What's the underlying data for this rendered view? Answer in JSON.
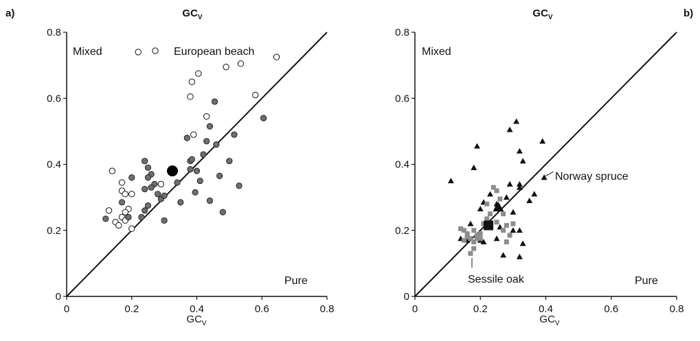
{
  "panels": [
    {
      "panel_label": "a)",
      "top_title_main": "GC",
      "top_title_sub": "V",
      "x_title_main": "GC",
      "x_title_sub": "V",
      "annotations": {
        "mixed": "Mixed",
        "pure": "Pure",
        "species": "European beach"
      }
    },
    {
      "panel_label": "b)",
      "top_title_main": "GC",
      "top_title_sub": "V",
      "x_title_main": "GC",
      "x_title_sub": "V",
      "annotations": {
        "mixed": "Mixed",
        "pure": "Pure",
        "species_1": "Norway spruce",
        "species_2": "Sessile oak"
      }
    }
  ],
  "chart_data": [
    {
      "type": "scatter",
      "xlim": [
        0,
        0.8
      ],
      "ylim": [
        0,
        0.8
      ],
      "x_ticks": [
        "0",
        "0.2",
        "0.4",
        "0.6",
        "0.8"
      ],
      "y_ticks": [
        "0",
        "0.2",
        "0.4",
        "0.6",
        "0.8"
      ],
      "reference_line": "1:1",
      "colors": {
        "open": "#ffffff",
        "grey": "#6e6e6e",
        "mean": "#000000"
      },
      "series": [
        {
          "marker": "open-circle",
          "points": [
            [
              0.14,
              0.38
            ],
            [
              0.17,
              0.345
            ],
            [
              0.17,
              0.32
            ],
            [
              0.18,
              0.31
            ],
            [
              0.19,
              0.265
            ],
            [
              0.2,
              0.31
            ],
            [
              0.18,
              0.255
            ],
            [
              0.17,
              0.24
            ],
            [
              0.18,
              0.23
            ],
            [
              0.15,
              0.225
            ],
            [
              0.16,
              0.215
            ],
            [
              0.13,
              0.26
            ],
            [
              0.2,
              0.205
            ],
            [
              0.29,
              0.34
            ],
            [
              0.385,
              0.65
            ],
            [
              0.405,
              0.675
            ],
            [
              0.38,
              0.605
            ],
            [
              0.43,
              0.545
            ],
            [
              0.49,
              0.695
            ],
            [
              0.535,
              0.705
            ],
            [
              0.58,
              0.61
            ],
            [
              0.645,
              0.725
            ],
            [
              0.39,
              0.49
            ],
            [
              0.22,
              0.74
            ]
          ]
        },
        {
          "marker": "grey-circle",
          "points": [
            [
              0.12,
              0.235
            ],
            [
              0.17,
              0.285
            ],
            [
              0.2,
              0.36
            ],
            [
              0.19,
              0.24
            ],
            [
              0.24,
              0.41
            ],
            [
              0.25,
              0.39
            ],
            [
              0.26,
              0.37
            ],
            [
              0.24,
              0.325
            ],
            [
              0.27,
              0.34
            ],
            [
              0.25,
              0.36
            ],
            [
              0.26,
              0.33
            ],
            [
              0.28,
              0.31
            ],
            [
              0.29,
              0.295
            ],
            [
              0.25,
              0.275
            ],
            [
              0.24,
              0.26
            ],
            [
              0.23,
              0.24
            ],
            [
              0.3,
              0.23
            ],
            [
              0.34,
              0.345
            ],
            [
              0.37,
              0.48
            ],
            [
              0.38,
              0.41
            ],
            [
              0.385,
              0.415
            ],
            [
              0.4,
              0.38
            ],
            [
              0.41,
              0.35
            ],
            [
              0.42,
              0.43
            ],
            [
              0.43,
              0.47
            ],
            [
              0.44,
              0.515
            ],
            [
              0.455,
              0.59
            ],
            [
              0.46,
              0.46
            ],
            [
              0.47,
              0.365
            ],
            [
              0.5,
              0.41
            ],
            [
              0.515,
              0.49
            ],
            [
              0.53,
              0.335
            ],
            [
              0.605,
              0.54
            ],
            [
              0.44,
              0.29
            ],
            [
              0.48,
              0.255
            ],
            [
              0.395,
              0.315
            ],
            [
              0.35,
              0.285
            ],
            [
              0.3,
              0.305
            ],
            [
              0.38,
              0.385
            ]
          ]
        },
        {
          "marker": "mean-circle",
          "points": [
            [
              0.325,
              0.38
            ]
          ]
        }
      ]
    },
    {
      "type": "scatter",
      "xlim": [
        0,
        0.8
      ],
      "ylim": [
        0,
        0.8
      ],
      "x_ticks": [
        "0",
        "0.2",
        "0.4",
        "0.6",
        "0.8"
      ],
      "y_ticks": [
        "0",
        "0.2",
        "0.4",
        "0.6",
        "0.8"
      ],
      "reference_line": "1:1",
      "colors": {
        "triangle": "#111111",
        "square": "#8c8c8c",
        "mean": "#111111"
      },
      "series": [
        {
          "marker": "black-triangle",
          "points": [
            [
              0.11,
              0.35
            ],
            [
              0.19,
              0.455
            ],
            [
              0.18,
              0.39
            ],
            [
              0.21,
              0.285
            ],
            [
              0.2,
              0.265
            ],
            [
              0.23,
              0.31
            ],
            [
              0.2,
              0.17
            ],
            [
              0.21,
              0.165
            ],
            [
              0.25,
              0.175
            ],
            [
              0.26,
              0.21
            ],
            [
              0.28,
              0.3
            ],
            [
              0.29,
              0.34
            ],
            [
              0.3,
              0.255
            ],
            [
              0.29,
              0.505
            ],
            [
              0.31,
              0.53
            ],
            [
              0.32,
              0.44
            ],
            [
              0.32,
              0.34
            ],
            [
              0.3,
              0.2
            ],
            [
              0.32,
              0.2
            ],
            [
              0.33,
              0.16
            ],
            [
              0.33,
              0.41
            ],
            [
              0.35,
              0.29
            ],
            [
              0.365,
              0.31
            ],
            [
              0.39,
              0.47
            ],
            [
              0.395,
              0.36
            ],
            [
              0.32,
              0.12
            ],
            [
              0.27,
              0.125
            ],
            [
              0.25,
              0.28
            ],
            [
              0.17,
              0.22
            ],
            [
              0.16,
              0.17
            ],
            [
              0.14,
              0.175
            ],
            [
              0.32,
              0.33
            ],
            [
              0.25,
              0.27
            ]
          ]
        },
        {
          "marker": "grey-square",
          "points": [
            [
              0.14,
              0.205
            ],
            [
              0.15,
              0.2
            ],
            [
              0.16,
              0.19
            ],
            [
              0.17,
              0.175
            ],
            [
              0.18,
              0.165
            ],
            [
              0.19,
              0.185
            ],
            [
              0.18,
              0.2
            ],
            [
              0.16,
              0.18
            ],
            [
              0.17,
              0.13
            ],
            [
              0.18,
              0.145
            ],
            [
              0.2,
              0.175
            ],
            [
              0.21,
              0.22
            ],
            [
              0.22,
              0.235
            ],
            [
              0.23,
              0.25
            ],
            [
              0.22,
              0.28
            ],
            [
              0.25,
              0.32
            ],
            [
              0.24,
              0.33
            ],
            [
              0.26,
              0.295
            ],
            [
              0.27,
              0.25
            ],
            [
              0.28,
              0.215
            ],
            [
              0.29,
              0.185
            ],
            [
              0.28,
              0.165
            ],
            [
              0.27,
              0.2
            ],
            [
              0.25,
              0.225
            ],
            [
              0.3,
              0.22
            ],
            [
              0.2,
              0.19
            ],
            [
              0.19,
              0.175
            ],
            [
              0.15,
              0.17
            ]
          ]
        },
        {
          "marker": "mean-square",
          "points": [
            [
              0.225,
              0.215
            ]
          ]
        },
        {
          "marker": "mean-triangle",
          "points": [
            [
              0.255,
              0.27
            ]
          ]
        }
      ]
    }
  ]
}
